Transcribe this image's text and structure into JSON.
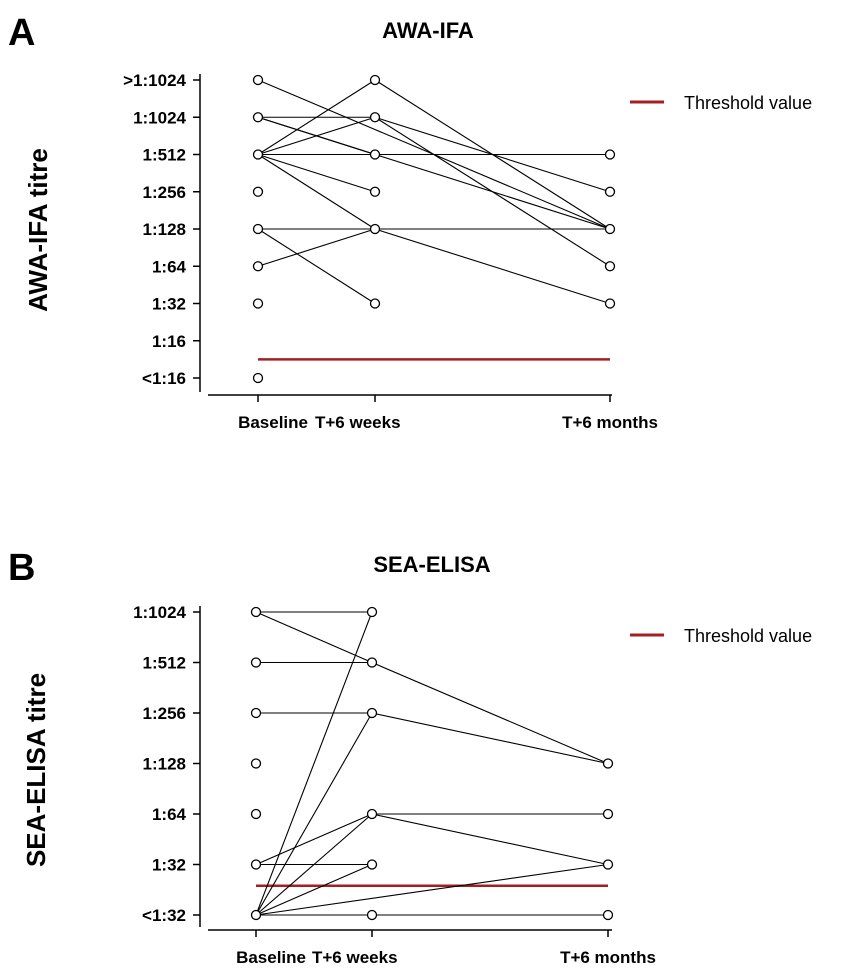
{
  "chart_data": [
    {
      "type": "line",
      "panel_letter": "A",
      "title": "AWA-IFA",
      "ylabel": "AWA-IFA titre",
      "xlabel": "",
      "categories": [
        "Baseline",
        "T+6 weeks",
        "T+6 months"
      ],
      "y_ticks": [
        "<1:16",
        "1:16",
        "1:32",
        "1:64",
        "1:128",
        "1:256",
        "1:512",
        "1:1024",
        ">1:1024"
      ],
      "y_range": [
        0,
        8
      ],
      "grid": false,
      "legend": {
        "position": "top-right",
        "entries": [
          {
            "label": "Threshold value",
            "color": "#a31f24"
          }
        ]
      },
      "threshold": {
        "label": "Threshold value",
        "y": 0.5,
        "color": "#a31f24"
      },
      "connections": [
        {
          "from": [
            "Baseline",
            7
          ],
          "to": [
            "T+6 weeks",
            7
          ]
        },
        {
          "from": [
            "Baseline",
            7
          ],
          "to": [
            "T+6 weeks",
            6
          ]
        },
        {
          "from": [
            "Baseline",
            7
          ],
          "to": [
            "T+6 months",
            4
          ]
        },
        {
          "from": [
            "Baseline",
            8
          ],
          "to": [
            "T+6 months",
            4
          ]
        },
        {
          "from": [
            "Baseline",
            6
          ],
          "to": [
            "T+6 weeks",
            8
          ]
        },
        {
          "from": [
            "Baseline",
            6
          ],
          "to": [
            "T+6 weeks",
            7
          ]
        },
        {
          "from": [
            "Baseline",
            6
          ],
          "to": [
            "T+6 weeks",
            5
          ]
        },
        {
          "from": [
            "Baseline",
            6
          ],
          "to": [
            "T+6 weeks",
            4
          ]
        },
        {
          "from": [
            "Baseline",
            6
          ],
          "to": [
            "T+6 months",
            6
          ]
        },
        {
          "from": [
            "Baseline",
            4
          ],
          "to": [
            "T+6 weeks",
            2
          ]
        },
        {
          "from": [
            "Baseline",
            4
          ],
          "to": [
            "T+6 months",
            4
          ]
        },
        {
          "from": [
            "Baseline",
            3
          ],
          "to": [
            "T+6 weeks",
            4
          ]
        },
        {
          "from": [
            "T+6 weeks",
            8
          ],
          "to": [
            "T+6 months",
            4
          ]
        },
        {
          "from": [
            "T+6 weeks",
            7
          ],
          "to": [
            "T+6 months",
            5
          ]
        },
        {
          "from": [
            "T+6 weeks",
            7
          ],
          "to": [
            "T+6 months",
            3
          ]
        },
        {
          "from": [
            "T+6 weeks",
            4
          ],
          "to": [
            "T+6 months",
            2
          ]
        }
      ],
      "points": [
        [
          "Baseline",
          8
        ],
        [
          "Baseline",
          7
        ],
        [
          "Baseline",
          6
        ],
        [
          "Baseline",
          5
        ],
        [
          "Baseline",
          4
        ],
        [
          "Baseline",
          3
        ],
        [
          "Baseline",
          2
        ],
        [
          "Baseline",
          0
        ],
        [
          "T+6 weeks",
          8
        ],
        [
          "T+6 weeks",
          7
        ],
        [
          "T+6 weeks",
          6
        ],
        [
          "T+6 weeks",
          5
        ],
        [
          "T+6 weeks",
          4
        ],
        [
          "T+6 weeks",
          2
        ],
        [
          "T+6 months",
          6
        ],
        [
          "T+6 months",
          5
        ],
        [
          "T+6 months",
          4
        ],
        [
          "T+6 months",
          3
        ],
        [
          "T+6 months",
          2
        ]
      ]
    },
    {
      "type": "line",
      "panel_letter": "B",
      "title": "SEA-ELISA",
      "ylabel": "SEA-ELISA titre",
      "xlabel": "",
      "categories": [
        "Baseline",
        "T+6 weeks",
        "T+6 months"
      ],
      "y_ticks": [
        "<1:32",
        "1:32",
        "1:64",
        "1:128",
        "1:256",
        "1:512",
        "1:1024"
      ],
      "y_range": [
        0,
        6
      ],
      "grid": false,
      "legend": {
        "position": "top-right",
        "entries": [
          {
            "label": "Threshold value",
            "color": "#a31f24"
          }
        ]
      },
      "threshold": {
        "label": "Threshold value",
        "y": 0.58,
        "color": "#a31f24"
      },
      "connections": [
        {
          "from": [
            "Baseline",
            6
          ],
          "to": [
            "T+6 weeks",
            6
          ]
        },
        {
          "from": [
            "Baseline",
            6
          ],
          "to": [
            "T+6 weeks",
            5
          ]
        },
        {
          "from": [
            "Baseline",
            5
          ],
          "to": [
            "T+6 weeks",
            5
          ]
        },
        {
          "from": [
            "Baseline",
            4
          ],
          "to": [
            "T+6 weeks",
            4
          ]
        },
        {
          "from": [
            "Baseline",
            1
          ],
          "to": [
            "T+6 weeks",
            1
          ]
        },
        {
          "from": [
            "Baseline",
            1
          ],
          "to": [
            "T+6 weeks",
            2
          ]
        },
        {
          "from": [
            "Baseline",
            0
          ],
          "to": [
            "T+6 weeks",
            6
          ]
        },
        {
          "from": [
            "Baseline",
            0
          ],
          "to": [
            "T+6 weeks",
            4
          ]
        },
        {
          "from": [
            "Baseline",
            0
          ],
          "to": [
            "T+6 weeks",
            2
          ]
        },
        {
          "from": [
            "Baseline",
            0
          ],
          "to": [
            "T+6 weeks",
            1
          ]
        },
        {
          "from": [
            "Baseline",
            0
          ],
          "to": [
            "T+6 weeks",
            0
          ]
        },
        {
          "from": [
            "Baseline",
            0
          ],
          "to": [
            "T+6 months",
            1
          ]
        },
        {
          "from": [
            "T+6 weeks",
            5
          ],
          "to": [
            "T+6 months",
            3
          ]
        },
        {
          "from": [
            "T+6 weeks",
            4
          ],
          "to": [
            "T+6 months",
            3
          ]
        },
        {
          "from": [
            "T+6 weeks",
            2
          ],
          "to": [
            "T+6 months",
            2
          ]
        },
        {
          "from": [
            "T+6 weeks",
            2
          ],
          "to": [
            "T+6 months",
            1
          ]
        },
        {
          "from": [
            "T+6 weeks",
            0
          ],
          "to": [
            "T+6 months",
            0
          ]
        }
      ],
      "points": [
        [
          "Baseline",
          6
        ],
        [
          "Baseline",
          5
        ],
        [
          "Baseline",
          4
        ],
        [
          "Baseline",
          3
        ],
        [
          "Baseline",
          2
        ],
        [
          "Baseline",
          1
        ],
        [
          "Baseline",
          0
        ],
        [
          "T+6 weeks",
          6
        ],
        [
          "T+6 weeks",
          5
        ],
        [
          "T+6 weeks",
          4
        ],
        [
          "T+6 weeks",
          2
        ],
        [
          "T+6 weeks",
          1
        ],
        [
          "T+6 weeks",
          0
        ],
        [
          "T+6 months",
          3
        ],
        [
          "T+6 months",
          2
        ],
        [
          "T+6 months",
          1
        ],
        [
          "T+6 months",
          0
        ]
      ]
    }
  ]
}
